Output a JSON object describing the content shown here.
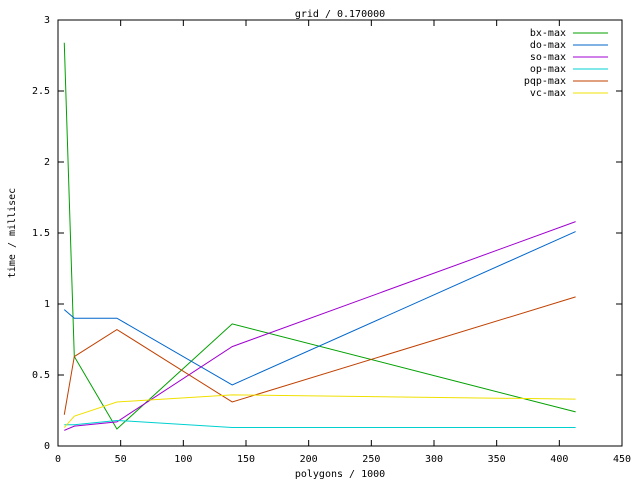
{
  "chart_data": {
    "type": "line",
    "title": "grid / 0.170000",
    "x_label": "polygons / 1000",
    "y_label": "time / millisec",
    "x": [
      5,
      13,
      47,
      139,
      413
    ],
    "series": [
      {
        "name": "bx-max",
        "color": "#00a000",
        "values": [
          2.84,
          0.63,
          0.12,
          0.86,
          0.24
        ]
      },
      {
        "name": "do-max",
        "color": "#0066cc",
        "values": [
          0.96,
          0.9,
          0.9,
          0.43,
          1.51
        ]
      },
      {
        "name": "so-max",
        "color": "#a000d0",
        "values": [
          0.11,
          0.14,
          0.17,
          0.7,
          1.58
        ]
      },
      {
        "name": "op-max",
        "color": "#00d0d0",
        "values": [
          0.15,
          0.15,
          0.18,
          0.13,
          0.13
        ]
      },
      {
        "name": "pqp-max",
        "color": "#c04000",
        "values": [
          0.22,
          0.63,
          0.82,
          0.31,
          1.05
        ]
      },
      {
        "name": "vc-max",
        "color": "#f0e000",
        "values": [
          0.13,
          0.21,
          0.31,
          0.36,
          0.33
        ]
      }
    ],
    "xlim": [
      0,
      450
    ],
    "ylim": [
      0,
      3
    ],
    "xticks": [
      0,
      50,
      100,
      150,
      200,
      250,
      300,
      350,
      400,
      450
    ],
    "yticks": [
      0,
      0.5,
      1,
      1.5,
      2,
      2.5,
      3
    ],
    "legend": "top-right"
  }
}
